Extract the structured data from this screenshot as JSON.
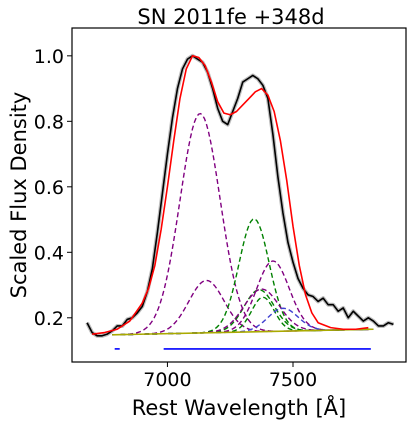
{
  "chart_data": {
    "type": "line",
    "title": "SN 2011fe  +348d",
    "xlabel": "Rest Wavelength [Å]",
    "ylabel": "Scaled Flux Density",
    "xlim": [
      6620,
      7950
    ],
    "ylim": [
      0.065,
      1.085
    ],
    "xticks": [
      7000,
      7500
    ],
    "yticks": [
      0.2,
      0.4,
      0.6,
      0.8,
      1.0
    ],
    "xtick_labels": [
      "7000",
      "7500"
    ],
    "ytick_labels": [
      "0.2",
      "0.4",
      "0.6",
      "0.8",
      "1.0"
    ],
    "grid": false,
    "legend": "none",
    "colors": {
      "observed_error": "#888888",
      "observed": "#000000",
      "total_fit": "#ff0000",
      "purple_components": "#800080",
      "green_components": "#008000",
      "blue_component": "#4040d0",
      "continuum": "#aaaa00",
      "fit_region": "#0000ff"
    },
    "observed_spectrum": {
      "x": [
        6680,
        6700,
        6720,
        6740,
        6760,
        6780,
        6800,
        6820,
        6840,
        6860,
        6880,
        6900,
        6920,
        6940,
        6960,
        6980,
        7000,
        7020,
        7040,
        7060,
        7080,
        7100,
        7120,
        7140,
        7160,
        7180,
        7200,
        7220,
        7240,
        7260,
        7280,
        7300,
        7320,
        7340,
        7360,
        7380,
        7400,
        7420,
        7440,
        7460,
        7480,
        7500,
        7520,
        7540,
        7560,
        7580,
        7600,
        7620,
        7640,
        7660,
        7680,
        7700,
        7720,
        7740,
        7760,
        7780,
        7800,
        7820,
        7840,
        7860,
        7880,
        7900
      ],
      "y": [
        0.185,
        0.155,
        0.145,
        0.145,
        0.15,
        0.16,
        0.175,
        0.175,
        0.195,
        0.2,
        0.215,
        0.235,
        0.28,
        0.35,
        0.46,
        0.58,
        0.7,
        0.81,
        0.9,
        0.96,
        0.99,
        1.0,
        0.99,
        0.98,
        0.95,
        0.9,
        0.84,
        0.8,
        0.79,
        0.83,
        0.87,
        0.92,
        0.93,
        0.94,
        0.93,
        0.91,
        0.87,
        0.76,
        0.63,
        0.52,
        0.43,
        0.37,
        0.32,
        0.29,
        0.27,
        0.265,
        0.25,
        0.26,
        0.24,
        0.24,
        0.22,
        0.23,
        0.2,
        0.22,
        0.205,
        0.19,
        0.2,
        0.19,
        0.175,
        0.175,
        0.185,
        0.18
      ]
    },
    "total_fit": {
      "x": [
        6700,
        6750,
        6800,
        6850,
        6900,
        6925,
        6950,
        6975,
        7000,
        7025,
        7050,
        7075,
        7100,
        7125,
        7150,
        7175,
        7200,
        7225,
        7250,
        7275,
        7300,
        7325,
        7350,
        7375,
        7400,
        7425,
        7450,
        7475,
        7500,
        7525,
        7550,
        7575,
        7600,
        7650,
        7700,
        7750,
        7800
      ],
      "y": [
        0.15,
        0.155,
        0.165,
        0.19,
        0.245,
        0.29,
        0.36,
        0.47,
        0.6,
        0.74,
        0.87,
        0.96,
        1.0,
        0.995,
        0.97,
        0.92,
        0.86,
        0.825,
        0.82,
        0.83,
        0.85,
        0.87,
        0.89,
        0.9,
        0.88,
        0.83,
        0.74,
        0.62,
        0.48,
        0.36,
        0.27,
        0.215,
        0.185,
        0.17,
        0.165,
        0.165,
        0.17
      ]
    },
    "continuum": {
      "x": [
        6780,
        7820
      ],
      "y": [
        0.148,
        0.165
      ]
    },
    "components": [
      {
        "color_key": "purple_components",
        "center": 7130,
        "amplitude": 0.67,
        "sigma": 80
      },
      {
        "color_key": "purple_components",
        "center": 7155,
        "amplitude": 0.16,
        "sigma": 70
      },
      {
        "color_key": "green_components",
        "center": 7345,
        "amplitude": 0.345,
        "sigma": 60
      },
      {
        "color_key": "purple_components",
        "center": 7420,
        "amplitude": 0.215,
        "sigma": 65
      },
      {
        "color_key": "green_components",
        "center": 7365,
        "amplitude": 0.128,
        "sigma": 60
      },
      {
        "color_key": "purple_components",
        "center": 7375,
        "amplitude": 0.13,
        "sigma": 70
      },
      {
        "color_key": "green_components",
        "center": 7380,
        "amplitude": 0.105,
        "sigma": 45
      },
      {
        "color_key": "blue_component",
        "center": 7460,
        "amplitude": 0.07,
        "sigma": 60
      }
    ],
    "fit_regions": [
      {
        "x": [
          6790,
          6810
        ],
        "y": 0.105
      },
      {
        "x": [
          6985,
          7810
        ],
        "y": 0.105
      }
    ]
  }
}
